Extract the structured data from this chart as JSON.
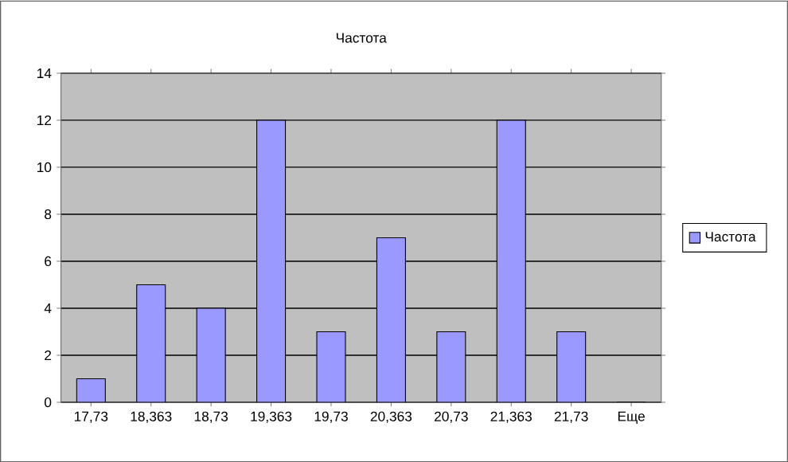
{
  "chart_data": {
    "type": "bar",
    "title": "Частота",
    "categories": [
      "17,73",
      "18,363",
      "18,73",
      "19,363",
      "19,73",
      "20,363",
      "20,73",
      "21,363",
      "21,73",
      "Еще"
    ],
    "series": [
      {
        "name": "Частота",
        "color": "#9999ff",
        "values": [
          1,
          5,
          4,
          12,
          3,
          7,
          3,
          12,
          3,
          0
        ]
      }
    ],
    "ylim": [
      0,
      14
    ],
    "yticks": [
      0,
      2,
      4,
      6,
      8,
      10,
      12,
      14
    ],
    "grid": "y",
    "legend": "right"
  }
}
